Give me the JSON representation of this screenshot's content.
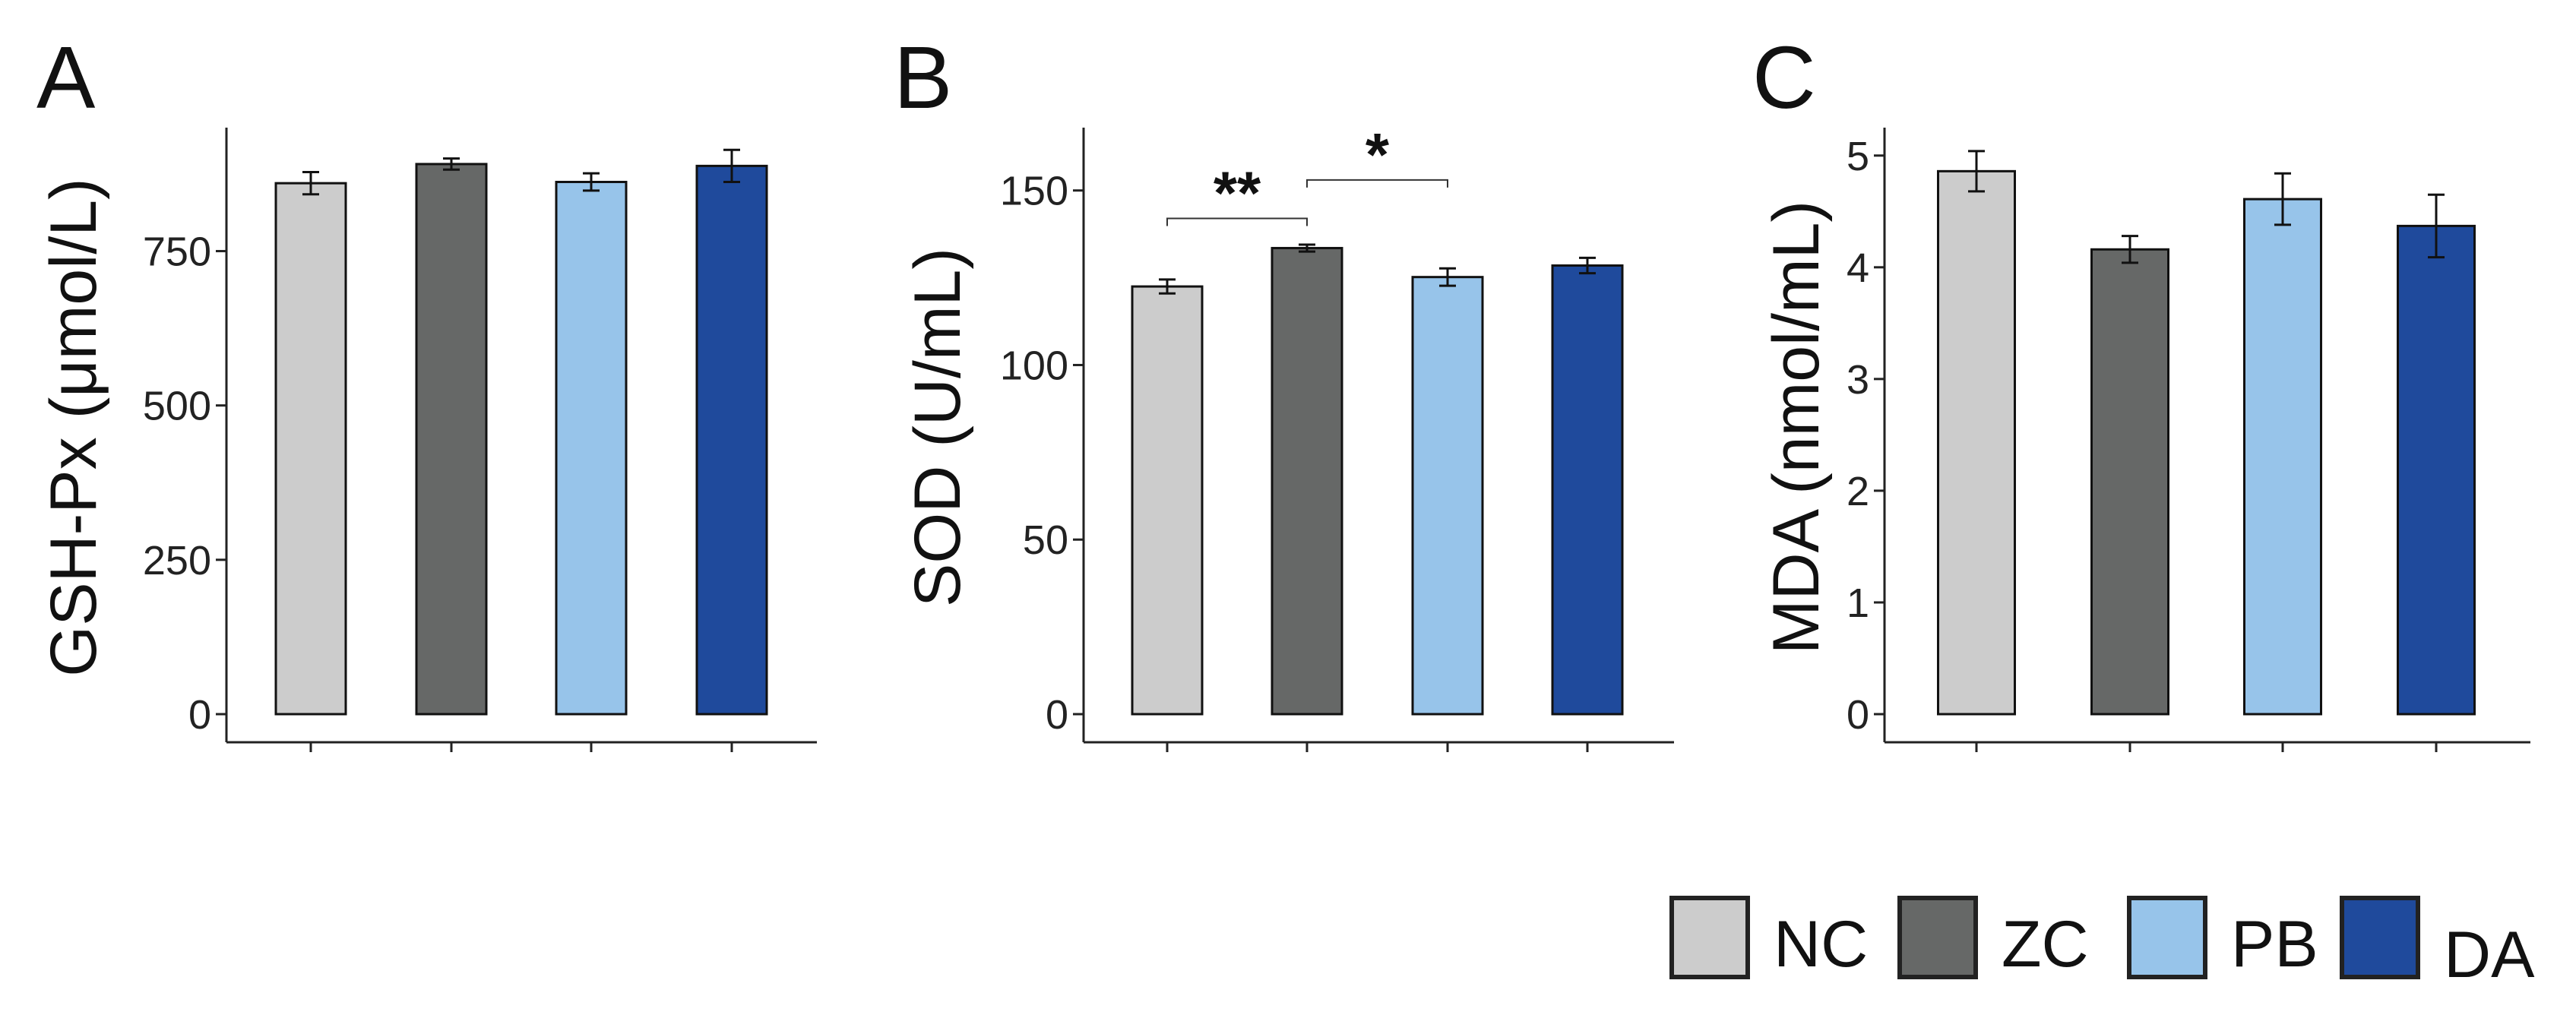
{
  "chart_data": [
    {
      "type": "bar",
      "panel": "A",
      "categories": [
        "NC",
        "ZC",
        "PB",
        "DA"
      ],
      "values": [
        860,
        891,
        862,
        888
      ],
      "errors": [
        18,
        9,
        14,
        26
      ],
      "ylabel": "GSH-Px (μmol/L)",
      "ylim": [
        0,
        950
      ],
      "yticks": [
        0,
        250,
        500,
        750
      ],
      "ytick_labels": [
        "0",
        "250",
        "500",
        "750"
      ],
      "significance": []
    },
    {
      "type": "bar",
      "panel": "B",
      "categories": [
        "NC",
        "ZC",
        "PB",
        "DA"
      ],
      "values": [
        122.5,
        133.5,
        125.2,
        128.5
      ],
      "errors": [
        2.0,
        1.0,
        2.5,
        2.2
      ],
      "ylabel": "SOD (U/mL)",
      "ylim": [
        0,
        168
      ],
      "yticks": [
        0,
        50,
        100,
        150
      ],
      "ytick_labels": [
        "0",
        "50",
        "100",
        "150"
      ],
      "significance": [
        {
          "from": 0,
          "to": 1,
          "label": "**",
          "level": 142
        },
        {
          "from": 1,
          "to": 2,
          "label": "*",
          "level": 153
        }
      ]
    },
    {
      "type": "bar",
      "panel": "C",
      "categories": [
        "NC",
        "ZC",
        "PB",
        "DA"
      ],
      "values": [
        4.86,
        4.16,
        4.61,
        4.37
      ],
      "errors": [
        0.18,
        0.12,
        0.23,
        0.28
      ],
      "ylabel": "MDA (nmol/mL)",
      "ylim": [
        0,
        5.25
      ],
      "yticks": [
        0,
        1,
        2,
        3,
        4,
        5
      ],
      "ytick_labels": [
        "0",
        "1",
        "2",
        "3",
        "4",
        "5"
      ],
      "significance": []
    }
  ],
  "legend": {
    "items": [
      {
        "label": "NC",
        "color": "#cccccc"
      },
      {
        "label": "ZC",
        "color": "#666867"
      },
      {
        "label": "PB",
        "color": "#97c4ea"
      },
      {
        "label": "DA",
        "color": "#1f4a9c"
      }
    ]
  },
  "colors": [
    "#cccccc",
    "#666867",
    "#97c4ea",
    "#1f4a9c"
  ]
}
